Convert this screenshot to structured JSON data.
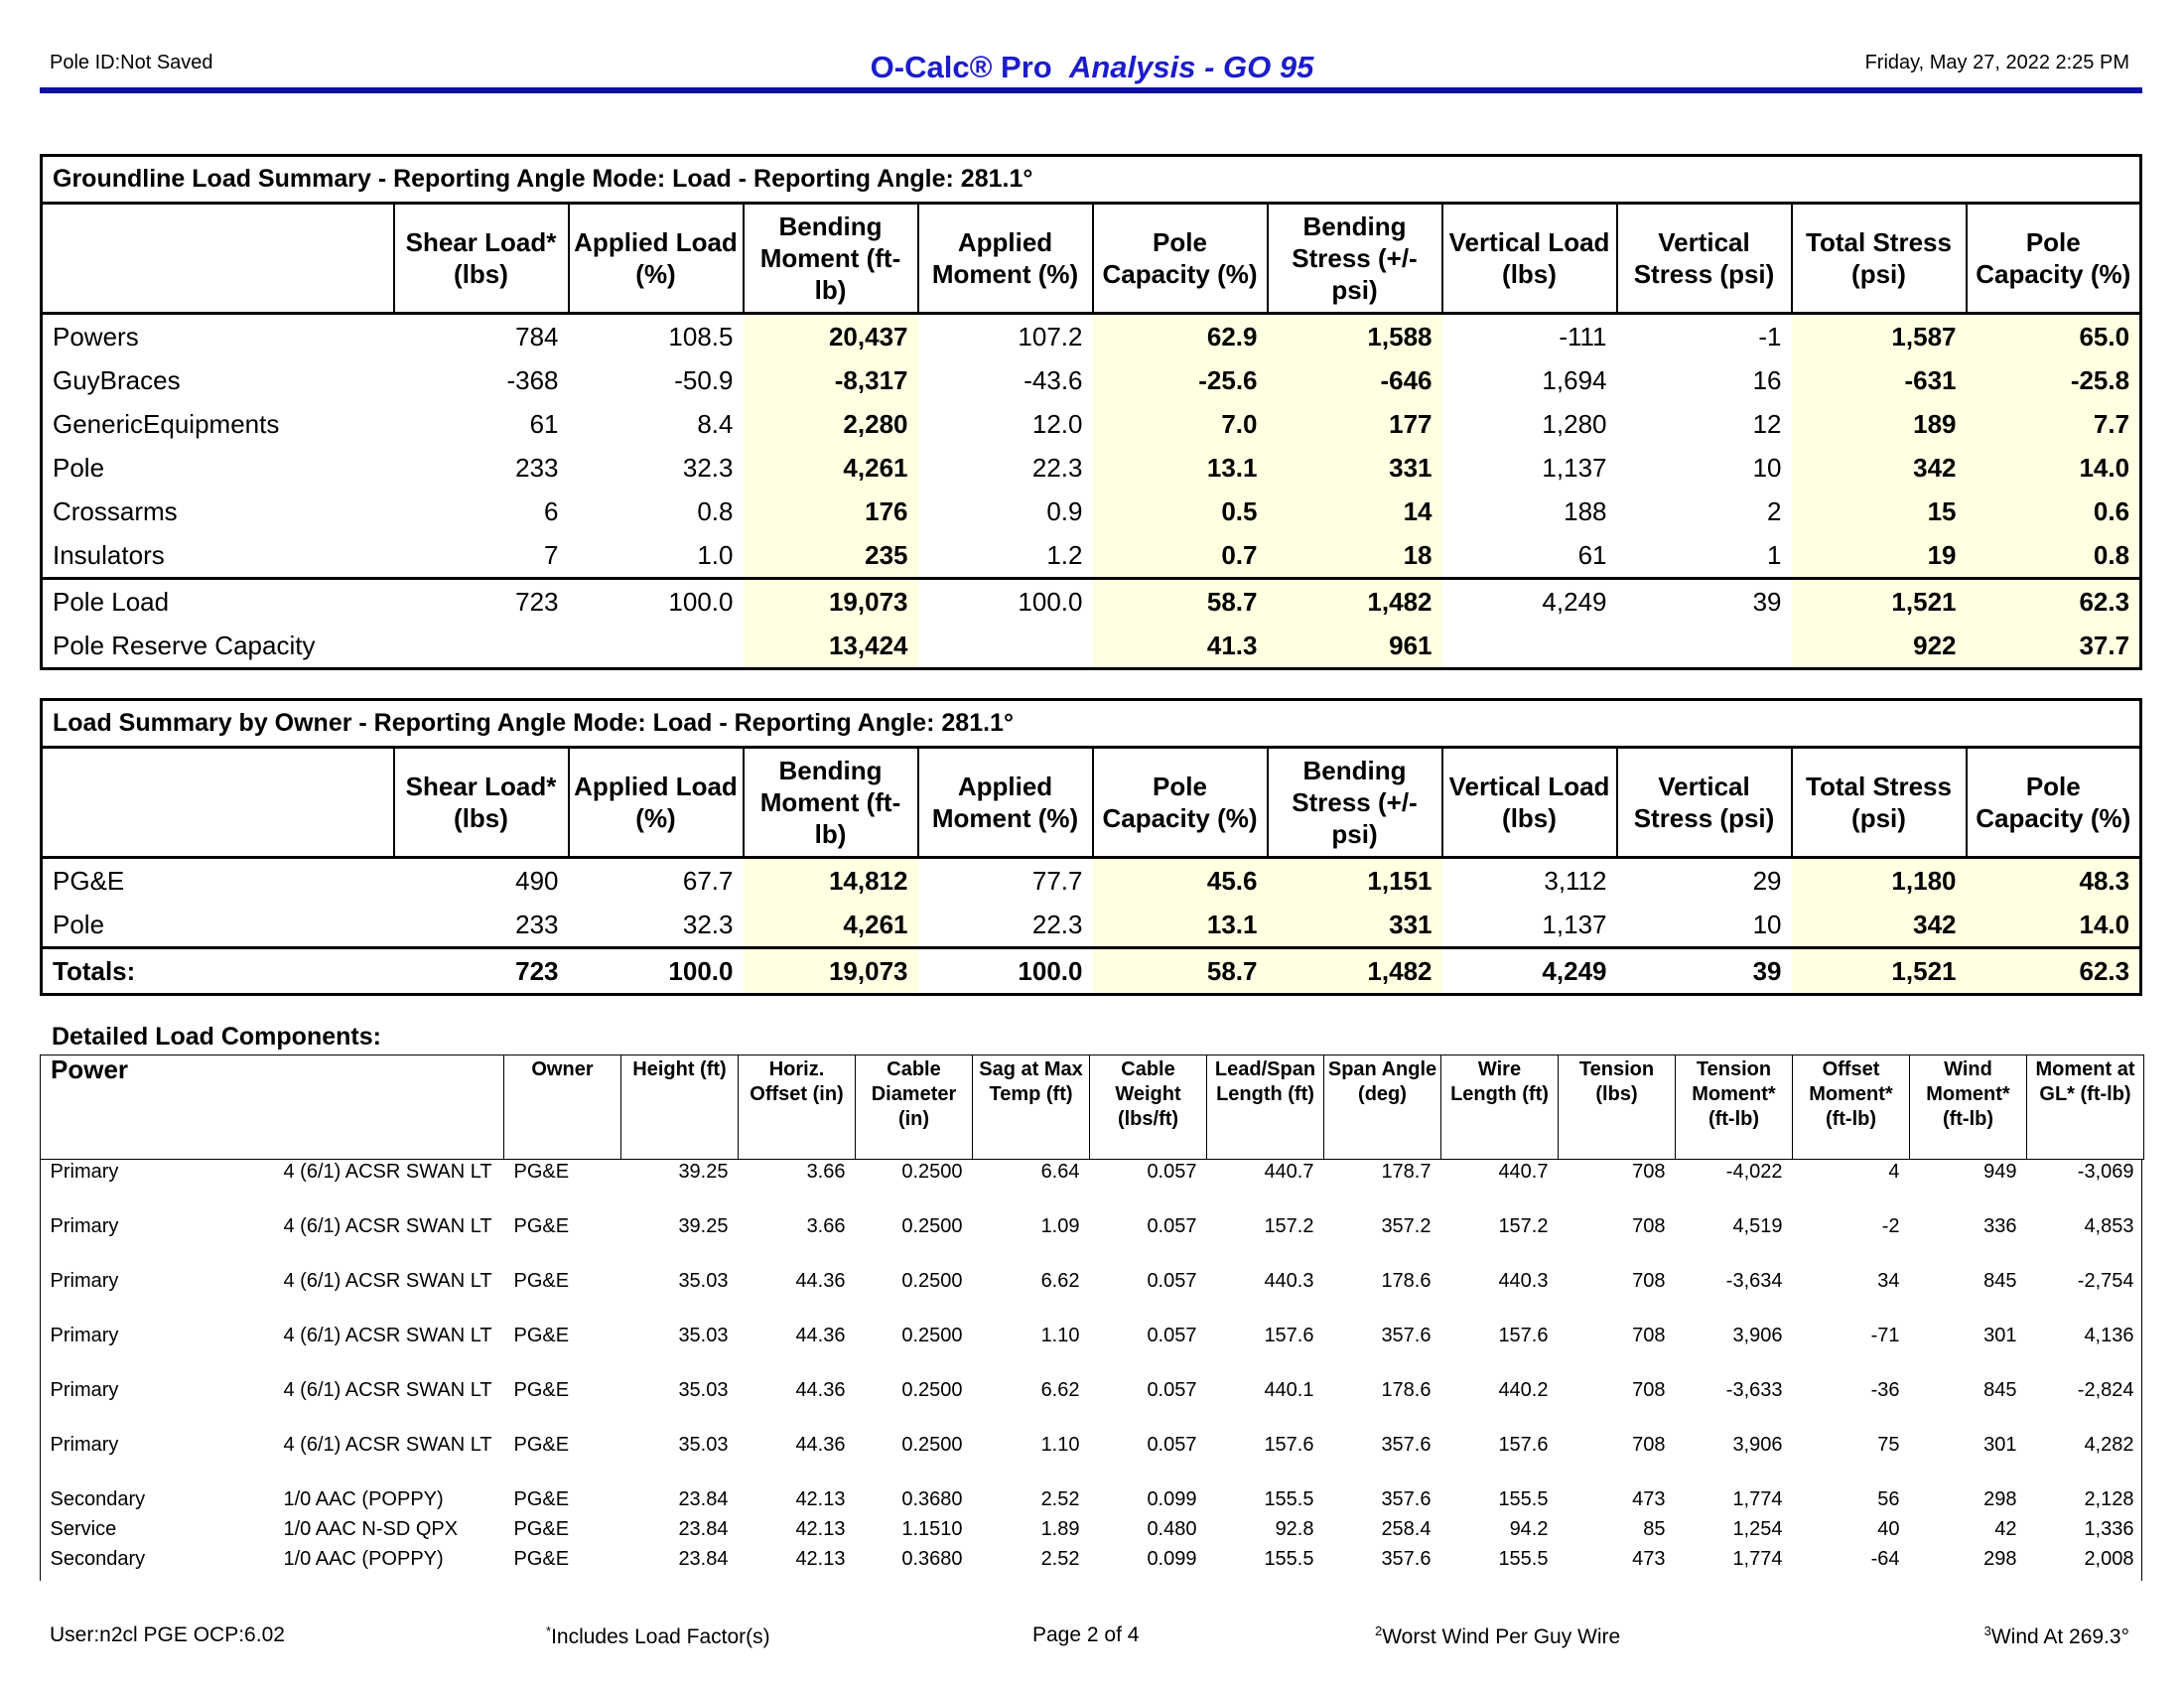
{
  "header": {
    "pole_id": "Pole ID:Not Saved",
    "title_main": "O-Calc® Pro",
    "title_sub": "Analysis - GO 95",
    "datetime": "Friday, May 27, 2022 2:25 PM"
  },
  "groundline": {
    "caption": "Groundline Load Summary - Reporting Angle Mode: Load - Reporting Angle: 281.1°",
    "columns": [
      "Shear Load* (lbs)",
      "Applied Load (%)",
      "Bending Moment (ft-lb)",
      "Applied Moment (%)",
      "Pole Capacity (%)",
      "Bending Stress (+/- psi)",
      "Vertical Load (lbs)",
      "Vertical Stress (psi)",
      "Total Stress (psi)",
      "Pole Capacity (%)"
    ],
    "rows": [
      [
        "Powers",
        "784",
        "108.5",
        "20,437",
        "107.2",
        "62.9",
        "1,588",
        "-111",
        "-1",
        "1,587",
        "65.0"
      ],
      [
        "GuyBraces",
        "-368",
        "-50.9",
        "-8,317",
        "-43.6",
        "-25.6",
        "-646",
        "1,694",
        "16",
        "-631",
        "-25.8"
      ],
      [
        "GenericEquipments",
        "61",
        "8.4",
        "2,280",
        "12.0",
        "7.0",
        "177",
        "1,280",
        "12",
        "189",
        "7.7"
      ],
      [
        "Pole",
        "233",
        "32.3",
        "4,261",
        "22.3",
        "13.1",
        "331",
        "1,137",
        "10",
        "342",
        "14.0"
      ],
      [
        "Crossarms",
        "6",
        "0.8",
        "176",
        "0.9",
        "0.5",
        "14",
        "188",
        "2",
        "15",
        "0.6"
      ],
      [
        "Insulators",
        "7",
        "1.0",
        "235",
        "1.2",
        "0.7",
        "18",
        "61",
        "1",
        "19",
        "0.8"
      ],
      [
        "Pole Load",
        "723",
        "100.0",
        "19,073",
        "100.0",
        "58.7",
        "1,482",
        "4,249",
        "39",
        "1,521",
        "62.3"
      ],
      [
        "Pole Reserve Capacity",
        "",
        "",
        "13,424",
        "",
        "41.3",
        "961",
        "",
        "",
        "922",
        "37.7"
      ]
    ]
  },
  "owner": {
    "caption": "Load Summary by Owner - Reporting Angle Mode: Load - Reporting Angle: 281.1°",
    "columns": [
      "Shear Load* (lbs)",
      "Applied Load (%)",
      "Bending Moment (ft-lb)",
      "Applied Moment (%)",
      "Pole Capacity (%)",
      "Bending Stress (+/- psi)",
      "Vertical Load (lbs)",
      "Vertical Stress (psi)",
      "Total Stress (psi)",
      "Pole Capacity (%)"
    ],
    "rows": [
      [
        "PG&E",
        "490",
        "67.7",
        "14,812",
        "77.7",
        "45.6",
        "1,151",
        "3,112",
        "29",
        "1,180",
        "48.3"
      ],
      [
        "Pole",
        "233",
        "32.3",
        "4,261",
        "22.3",
        "13.1",
        "331",
        "1,137",
        "10",
        "342",
        "14.0"
      ],
      [
        "Totals:",
        "723",
        "100.0",
        "19,073",
        "100.0",
        "58.7",
        "1,482",
        "4,249",
        "39",
        "1,521",
        "62.3"
      ]
    ]
  },
  "detailed": {
    "title": "Detailed Load Components:",
    "group": "Power",
    "columns": [
      "Owner",
      "Height (ft)",
      "Horiz. Offset (in)",
      "Cable Diameter (in)",
      "Sag at Max Temp (ft)",
      "Cable Weight (lbs/ft)",
      "Lead/Span Length (ft)",
      "Span Angle (deg)",
      "Wire Length (ft)",
      "Tension (lbs)",
      "Tension Moment* (ft-lb)",
      "Offset Moment* (ft-lb)",
      "Wind Moment* (ft-lb)",
      "Moment at GL* (ft-lb)"
    ],
    "rows": [
      [
        "Primary",
        "4 (6/1) ACSR SWAN LT",
        "PG&E",
        "39.25",
        "3.66",
        "0.2500",
        "6.64",
        "0.057",
        "440.7",
        "178.7",
        "440.7",
        "708",
        "-4,022",
        "4",
        "949",
        "-3,069"
      ],
      [
        "Primary",
        "4 (6/1) ACSR SWAN LT",
        "PG&E",
        "39.25",
        "3.66",
        "0.2500",
        "1.09",
        "0.057",
        "157.2",
        "357.2",
        "157.2",
        "708",
        "4,519",
        "-2",
        "336",
        "4,853"
      ],
      [
        "Primary",
        "4 (6/1) ACSR SWAN LT",
        "PG&E",
        "35.03",
        "44.36",
        "0.2500",
        "6.62",
        "0.057",
        "440.3",
        "178.6",
        "440.3",
        "708",
        "-3,634",
        "34",
        "845",
        "-2,754"
      ],
      [
        "Primary",
        "4 (6/1) ACSR SWAN LT",
        "PG&E",
        "35.03",
        "44.36",
        "0.2500",
        "1.10",
        "0.057",
        "157.6",
        "357.6",
        "157.6",
        "708",
        "3,906",
        "-71",
        "301",
        "4,136"
      ],
      [
        "Primary",
        "4 (6/1) ACSR SWAN LT",
        "PG&E",
        "35.03",
        "44.36",
        "0.2500",
        "6.62",
        "0.057",
        "440.1",
        "178.6",
        "440.2",
        "708",
        "-3,633",
        "-36",
        "845",
        "-2,824"
      ],
      [
        "Primary",
        "4 (6/1) ACSR SWAN LT",
        "PG&E",
        "35.03",
        "44.36",
        "0.2500",
        "1.10",
        "0.057",
        "157.6",
        "357.6",
        "157.6",
        "708",
        "3,906",
        "75",
        "301",
        "4,282"
      ],
      [
        "Secondary",
        "1/0 AAC (POPPY)",
        "PG&E",
        "23.84",
        "42.13",
        "0.3680",
        "2.52",
        "0.099",
        "155.5",
        "357.6",
        "155.5",
        "473",
        "1,774",
        "56",
        "298",
        "2,128"
      ],
      [
        "Service",
        "1/0 AAC N-SD QPX",
        "PG&E",
        "23.84",
        "42.13",
        "1.1510",
        "1.89",
        "0.480",
        "92.8",
        "258.4",
        "94.2",
        "85",
        "1,254",
        "40",
        "42",
        "1,336"
      ],
      [
        "Secondary",
        "1/0 AAC (POPPY)",
        "PG&E",
        "23.84",
        "42.13",
        "0.3680",
        "2.52",
        "0.099",
        "155.5",
        "357.6",
        "155.5",
        "473",
        "1,774",
        "-64",
        "298",
        "2,008"
      ]
    ]
  },
  "footer": {
    "user": "User:n2cl PGE OCP:6.02",
    "note1_mark": "*",
    "note1": "Includes Load Factor(s)",
    "page": "Page 2 of 4",
    "note2_mark": "2",
    "note2": "Worst Wind Per Guy Wire",
    "note3_mark": "3",
    "note3": "Wind At 269.3°"
  }
}
